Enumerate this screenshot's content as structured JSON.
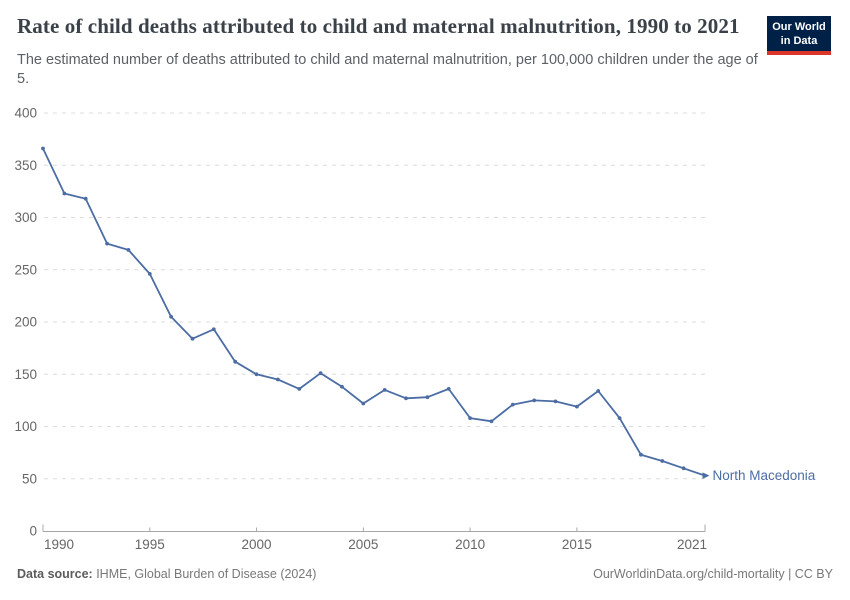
{
  "header": {
    "title": "Rate of child deaths attributed to child and maternal malnutrition, 1990 to 2021",
    "subtitle": "The estimated number of deaths attributed to child and maternal malnutrition, per 100,000 children under the age of 5.",
    "logo": {
      "line1": "Our World",
      "line2": "in Data",
      "bg_color": "#002147",
      "stripe_color": "#dc352a"
    }
  },
  "chart_data": {
    "type": "line",
    "title": "Rate of child deaths attributed to child and maternal malnutrition, 1990 to 2021",
    "xlabel": "",
    "ylabel": "",
    "x": [
      1990,
      1991,
      1992,
      1993,
      1994,
      1995,
      1996,
      1997,
      1998,
      1999,
      2000,
      2001,
      2002,
      2003,
      2004,
      2005,
      2006,
      2007,
      2008,
      2009,
      2010,
      2011,
      2012,
      2013,
      2014,
      2015,
      2016,
      2017,
      2018,
      2019,
      2020,
      2021
    ],
    "series": [
      {
        "name": "North Macedonia",
        "color": "#4c6da4",
        "values": [
          366,
          323,
          318,
          275,
          269,
          246,
          205,
          184,
          193,
          162,
          150,
          145,
          136,
          151,
          138,
          122,
          135,
          127,
          128,
          136,
          108,
          105,
          121,
          125,
          124,
          119,
          134,
          108,
          73,
          67,
          60,
          53
        ]
      }
    ],
    "ylim": [
      0,
      400
    ],
    "yticks": [
      0,
      50,
      100,
      150,
      200,
      250,
      300,
      350,
      400
    ],
    "xticks": [
      1990,
      1995,
      2000,
      2005,
      2010,
      2015,
      2021
    ],
    "grid": "horizontal-dashed",
    "legend_position": "end-of-line-label",
    "end_label": "North Macedonia",
    "colors": {
      "line": "#4c6da4",
      "grid": "#dcdcdc",
      "axis": "#a8a8a8",
      "tick_text": "#666666"
    }
  },
  "footer": {
    "data_source_label": "Data source:",
    "data_source_value": " IHME, Global Burden of Disease (2024)",
    "credit": "OurWorldinData.org/child-mortality | CC BY"
  }
}
